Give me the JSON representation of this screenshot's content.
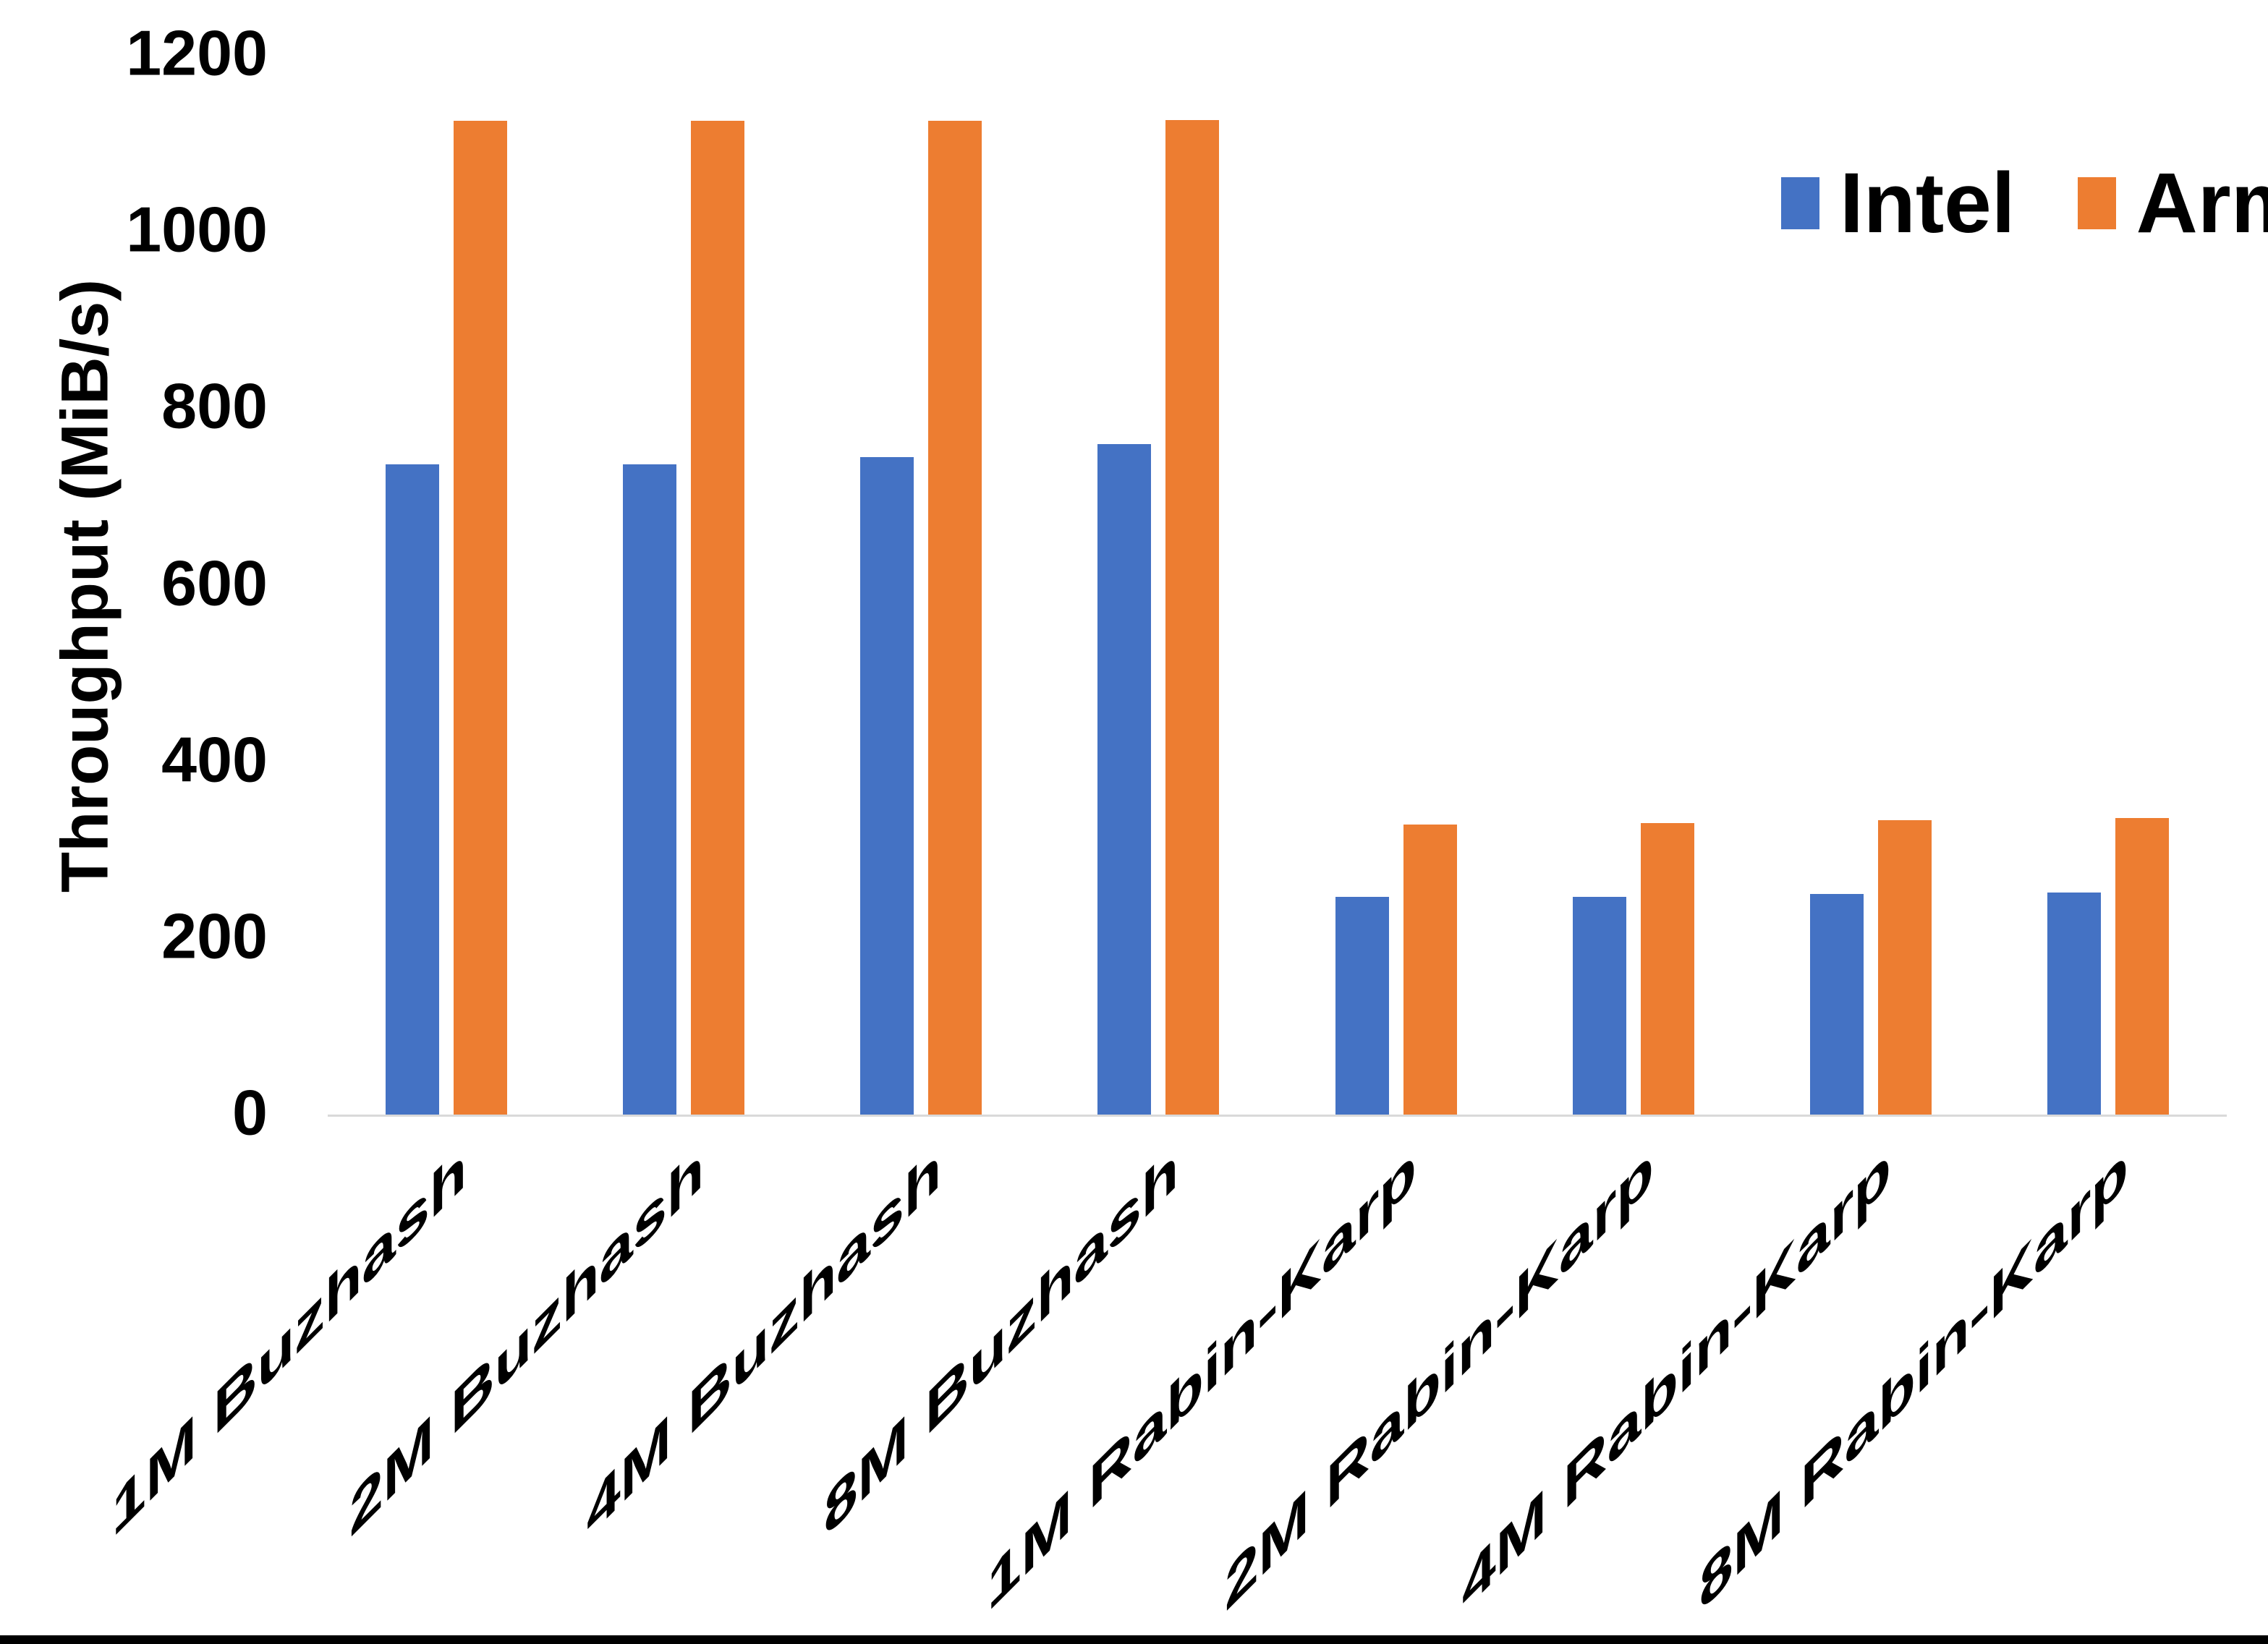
{
  "chart_data": {
    "type": "bar",
    "title": "",
    "xlabel": "",
    "ylabel": "Throughput (MiB/s)",
    "ylim": [
      0,
      1200
    ],
    "yticks": [
      0,
      200,
      400,
      600,
      800,
      1000,
      1200
    ],
    "grid": false,
    "legend_position": "top-right",
    "categories": [
      "1M Buzhash",
      "2M Buzhash",
      "4M Buzhash",
      "8M Buzhash",
      "1M Rabin-Karp",
      "2M Rabin-Karp",
      "4M Rabin-Karp",
      "8M Rabin-Karp"
    ],
    "series": [
      {
        "name": "Intel",
        "color": "#4472C4",
        "values": [
          737,
          737,
          745,
          760,
          247,
          247,
          251,
          252
        ]
      },
      {
        "name": "Arm",
        "color": "#ED7D31",
        "values": [
          1126,
          1126,
          1126,
          1127,
          329,
          331,
          334,
          337
        ]
      }
    ]
  },
  "colors": {
    "background": "#FFFFFF",
    "axis_line": "#D9D9D9",
    "text": "#000000",
    "bottom_border": "#000000"
  }
}
